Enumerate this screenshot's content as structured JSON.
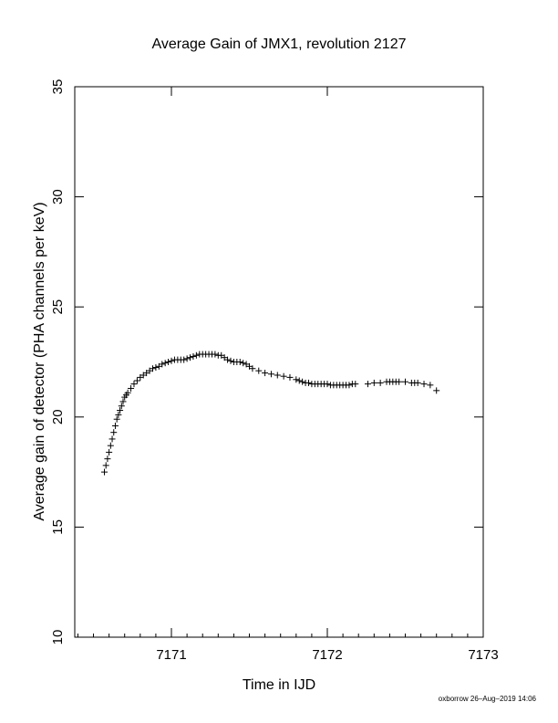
{
  "chart_data": {
    "type": "scatter",
    "title": "Average Gain of JMX1, revolution 2127",
    "xlabel": "Time in IJD",
    "ylabel": "Average gain of detector (PHA channels per keV)",
    "xlim": [
      7170.38,
      7173
    ],
    "ylim": [
      10,
      35
    ],
    "xticks": [
      7171,
      7172,
      7173
    ],
    "yticks": [
      10,
      15,
      20,
      25,
      30,
      35
    ],
    "grid": false,
    "marker": "+",
    "marker_color": "#000000",
    "x": [
      7170.57,
      7170.58,
      7170.59,
      7170.6,
      7170.61,
      7170.62,
      7170.63,
      7170.64,
      7170.65,
      7170.66,
      7170.67,
      7170.68,
      7170.69,
      7170.7,
      7170.71,
      7170.72,
      7170.74,
      7170.76,
      7170.78,
      7170.8,
      7170.82,
      7170.84,
      7170.86,
      7170.88,
      7170.9,
      7170.92,
      7170.94,
      7170.96,
      7170.98,
      7171.0,
      7171.02,
      7171.04,
      7171.06,
      7171.08,
      7171.1,
      7171.12,
      7171.14,
      7171.16,
      7171.18,
      7171.2,
      7171.22,
      7171.24,
      7171.26,
      7171.28,
      7171.3,
      7171.32,
      7171.34,
      7171.36,
      7171.38,
      7171.4,
      7171.42,
      7171.44,
      7171.46,
      7171.48,
      7171.5,
      7171.52,
      7171.56,
      7171.6,
      7171.64,
      7171.68,
      7171.72,
      7171.76,
      7171.8,
      7171.82,
      7171.84,
      7171.86,
      7171.88,
      7171.9,
      7171.92,
      7171.94,
      7171.96,
      7171.98,
      7172.0,
      7172.02,
      7172.04,
      7172.06,
      7172.08,
      7172.1,
      7172.12,
      7172.14,
      7172.16,
      7172.18,
      7172.26,
      7172.3,
      7172.34,
      7172.38,
      7172.4,
      7172.42,
      7172.44,
      7172.46,
      7172.5,
      7172.54,
      7172.56,
      7172.58,
      7172.62,
      7172.66,
      7172.7
    ],
    "y": [
      17.5,
      17.8,
      18.1,
      18.4,
      18.7,
      19.0,
      19.3,
      19.6,
      19.9,
      20.1,
      20.3,
      20.5,
      20.7,
      20.9,
      21.0,
      21.1,
      21.3,
      21.5,
      21.65,
      21.8,
      21.9,
      22.0,
      22.1,
      22.2,
      22.25,
      22.3,
      22.4,
      22.45,
      22.5,
      22.55,
      22.6,
      22.6,
      22.6,
      22.6,
      22.65,
      22.7,
      22.75,
      22.8,
      22.85,
      22.85,
      22.85,
      22.85,
      22.85,
      22.85,
      22.8,
      22.8,
      22.7,
      22.6,
      22.55,
      22.5,
      22.5,
      22.5,
      22.45,
      22.4,
      22.3,
      22.2,
      22.1,
      22.0,
      21.95,
      21.9,
      21.85,
      21.8,
      21.7,
      21.65,
      21.6,
      21.55,
      21.55,
      21.5,
      21.5,
      21.5,
      21.5,
      21.5,
      21.5,
      21.45,
      21.45,
      21.45,
      21.45,
      21.45,
      21.45,
      21.45,
      21.5,
      21.5,
      21.5,
      21.55,
      21.55,
      21.6,
      21.6,
      21.6,
      21.6,
      21.6,
      21.6,
      21.55,
      21.55,
      21.55,
      21.5,
      21.45,
      21.2
    ]
  },
  "footer": {
    "stamp": "oxborrow 26–Aug–2019 14:06"
  }
}
